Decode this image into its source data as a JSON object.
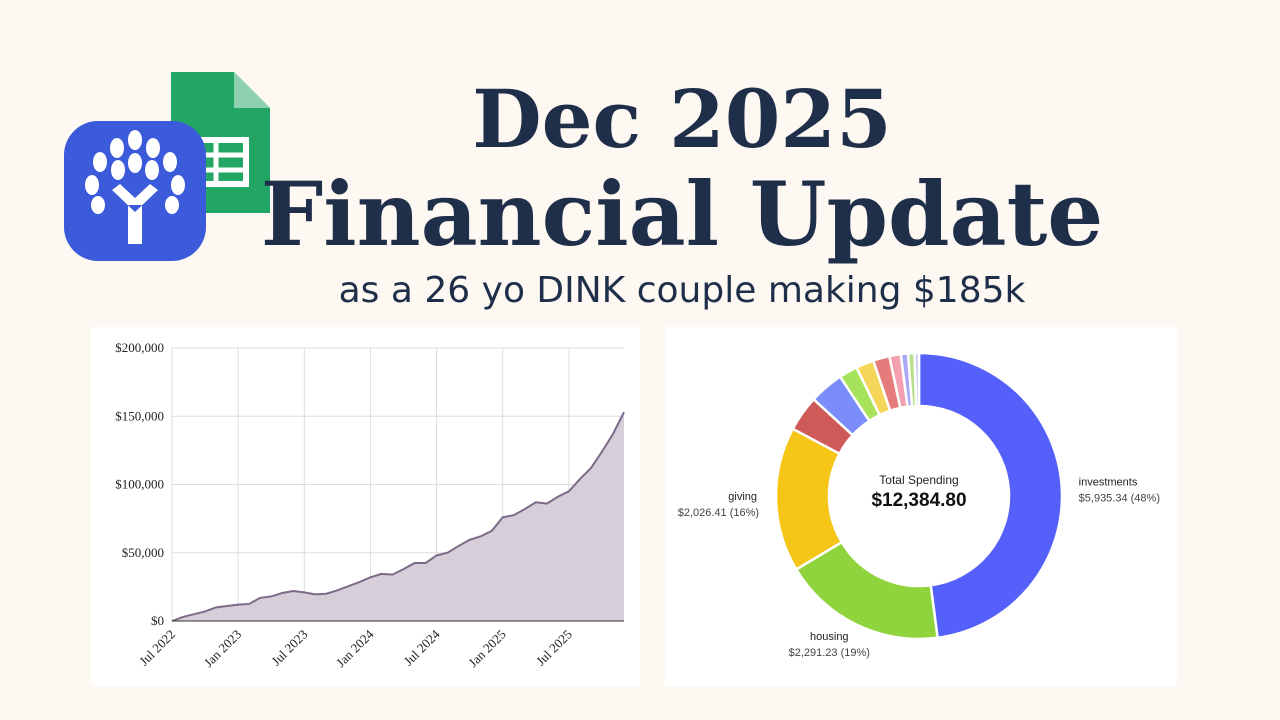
{
  "header": {
    "title_line1": "Dec 2025",
    "title_line2": "Financial Update",
    "subtitle": "as a 26 yo DINK couple making $185k"
  },
  "chart_data": [
    {
      "type": "area",
      "x": [
        "2022-07",
        "2022-08",
        "2022-09",
        "2022-10",
        "2022-11",
        "2022-12",
        "2023-01",
        "2023-02",
        "2023-03",
        "2023-04",
        "2023-05",
        "2023-06",
        "2023-07",
        "2023-08",
        "2023-09",
        "2023-10",
        "2023-11",
        "2023-12",
        "2024-01",
        "2024-02",
        "2024-03",
        "2024-04",
        "2024-05",
        "2024-06",
        "2024-07",
        "2024-08",
        "2024-09",
        "2024-10",
        "2024-11",
        "2024-12",
        "2025-01",
        "2025-02",
        "2025-03",
        "2025-04",
        "2025-05",
        "2025-06",
        "2025-07",
        "2025-08",
        "2025-09",
        "2025-10",
        "2025-11",
        "2025-12"
      ],
      "values": [
        0,
        3000,
        5000,
        7000,
        10000,
        11000,
        12000,
        12500,
        17000,
        18000,
        20500,
        22000,
        21000,
        19500,
        20000,
        22500,
        25500,
        28500,
        32000,
        34500,
        34000,
        38000,
        42500,
        42500,
        48000,
        50000,
        55000,
        59500,
        62000,
        66000,
        76000,
        77500,
        82000,
        87000,
        86000,
        91000,
        95000,
        104000,
        112000,
        124000,
        137000,
        153000
      ],
      "color": "#7d6a88",
      "fill": "#d6ced9",
      "ylim": [
        0,
        200000
      ],
      "yticks": [
        {
          "value": 0,
          "label": "$0"
        },
        {
          "value": 50000,
          "label": "$50,000"
        },
        {
          "value": 100000,
          "label": "$100,000"
        },
        {
          "value": 150000,
          "label": "$150,000"
        },
        {
          "value": 200000,
          "label": "$200,000"
        }
      ],
      "xticks": [
        {
          "value": "2022-07",
          "label": "Jul 2022"
        },
        {
          "value": "2023-01",
          "label": "Jan 2023"
        },
        {
          "value": "2023-07",
          "label": "Jul 2023"
        },
        {
          "value": "2024-01",
          "label": "Jan 2024"
        },
        {
          "value": "2024-07",
          "label": "Jul 2024"
        },
        {
          "value": "2025-01",
          "label": "Jan 2025"
        },
        {
          "value": "2025-07",
          "label": "Jul 2025"
        }
      ],
      "grid": true
    },
    {
      "type": "donut",
      "center_title": "Total Spending",
      "center_value": "$12,384.80",
      "categories": [
        "investments",
        "housing",
        "giving",
        null,
        null,
        null,
        null,
        null,
        null,
        null,
        null,
        null
      ],
      "values": [
        5935.34,
        2291.23,
        2026.41,
        500,
        480,
        260,
        250,
        230,
        160,
        100,
        90,
        61.82
      ],
      "value_labels": [
        "$5,935.34 (48%)",
        "$2,291.23 (19%)",
        "$2,026.41 (16%)",
        null,
        null,
        null,
        null,
        null,
        null,
        null,
        null,
        null
      ],
      "colors": [
        "#5560fb",
        "#8fd43c",
        "#f5c518",
        "#cf5a5a",
        "#7b8cfb",
        "#a6e35a",
        "#f5d55a",
        "#e57b7b",
        "#f4a0b0",
        "#a8a8f5",
        "#b8e08a",
        "#c5c8f5"
      ]
    }
  ]
}
